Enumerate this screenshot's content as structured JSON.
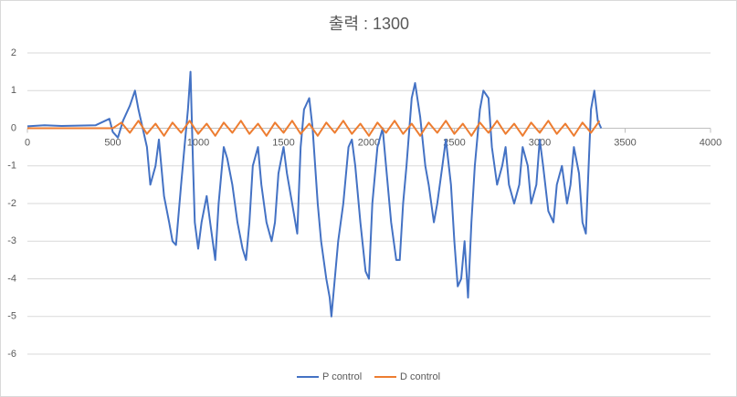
{
  "chart_data": {
    "type": "line",
    "title": "출력 : 1300",
    "xlim": [
      0,
      4000
    ],
    "xticks": [
      0,
      500,
      1000,
      1500,
      2000,
      2500,
      3000,
      3500,
      4000
    ],
    "ylim": [
      -6,
      2
    ],
    "yticks": [
      -6,
      -5,
      -4,
      -3,
      -2,
      -1,
      0,
      1,
      2
    ],
    "grid": true,
    "legend": "bottom",
    "series": [
      {
        "name": "P control",
        "color": "#4472c4",
        "x": [
          0,
          100,
          200,
          300,
          400,
          480,
          500,
          530,
          560,
          600,
          630,
          650,
          700,
          720,
          750,
          770,
          800,
          830,
          850,
          870,
          900,
          920,
          940,
          955,
          970,
          980,
          1000,
          1020,
          1050,
          1070,
          1100,
          1120,
          1150,
          1170,
          1200,
          1230,
          1260,
          1280,
          1300,
          1320,
          1350,
          1370,
          1400,
          1430,
          1450,
          1470,
          1500,
          1520,
          1550,
          1580,
          1600,
          1620,
          1650,
          1670,
          1700,
          1720,
          1750,
          1770,
          1780,
          1800,
          1820,
          1850,
          1880,
          1900,
          1920,
          1950,
          1980,
          2000,
          2020,
          2050,
          2080,
          2100,
          2130,
          2160,
          2180,
          2200,
          2220,
          2250,
          2270,
          2300,
          2330,
          2350,
          2380,
          2400,
          2430,
          2450,
          2480,
          2500,
          2520,
          2540,
          2560,
          2580,
          2600,
          2620,
          2650,
          2670,
          2700,
          2720,
          2750,
          2780,
          2800,
          2820,
          2850,
          2880,
          2900,
          2930,
          2950,
          2980,
          3000,
          3020,
          3050,
          3080,
          3100,
          3130,
          3160,
          3180,
          3200,
          3230,
          3250,
          3270,
          3300,
          3320,
          3340,
          3360
        ],
        "values": [
          0.05,
          0.08,
          0.06,
          0.07,
          0.08,
          0.25,
          -0.1,
          -0.25,
          0.2,
          0.6,
          1.0,
          0.5,
          -0.5,
          -1.5,
          -1,
          -0.3,
          -1.8,
          -2.5,
          -3,
          -3.1,
          -1.5,
          -0.5,
          0.5,
          1.5,
          -1,
          -2.5,
          -3.2,
          -2.5,
          -1.8,
          -2.5,
          -3.5,
          -2,
          -0.5,
          -0.8,
          -1.5,
          -2.5,
          -3.2,
          -3.5,
          -2.5,
          -1,
          -0.5,
          -1.5,
          -2.5,
          -3,
          -2.5,
          -1.2,
          -0.5,
          -1.2,
          -2,
          -2.8,
          -0.5,
          0.5,
          0.8,
          0,
          -2,
          -3,
          -4,
          -4.5,
          -5,
          -4,
          -3,
          -2,
          -0.5,
          -0.3,
          -1,
          -2.5,
          -3.8,
          -4,
          -2,
          -0.5,
          0,
          -1,
          -2.5,
          -3.5,
          -3.5,
          -2,
          -1,
          0.8,
          1.2,
          0.3,
          -1,
          -1.5,
          -2.5,
          -2,
          -1,
          -0.3,
          -1.5,
          -3,
          -4.2,
          -4,
          -3,
          -4.5,
          -2.5,
          -1,
          0.5,
          1,
          0.8,
          -0.5,
          -1.5,
          -1,
          -0.5,
          -1.5,
          -2,
          -1.5,
          -0.5,
          -1,
          -2,
          -1.5,
          -0.3,
          -1,
          -2.2,
          -2.5,
          -1.5,
          -1,
          -2,
          -1.5,
          -0.5,
          -1.2,
          -2.5,
          -2.8,
          0.5,
          1,
          0.2,
          0
        ]
      },
      {
        "name": "D control",
        "color": "#ed7d31",
        "x": [
          0,
          250,
          500,
          550,
          600,
          650,
          700,
          750,
          800,
          850,
          900,
          950,
          1000,
          1050,
          1100,
          1150,
          1200,
          1250,
          1300,
          1350,
          1400,
          1450,
          1500,
          1550,
          1600,
          1650,
          1700,
          1750,
          1800,
          1850,
          1900,
          1950,
          2000,
          2050,
          2100,
          2150,
          2200,
          2250,
          2300,
          2350,
          2400,
          2450,
          2500,
          2550,
          2600,
          2650,
          2700,
          2750,
          2800,
          2850,
          2900,
          2950,
          3000,
          3050,
          3100,
          3150,
          3200,
          3250,
          3300,
          3350
        ],
        "values": [
          0,
          0,
          0,
          0.15,
          -0.12,
          0.2,
          -0.15,
          0.12,
          -0.2,
          0.15,
          -0.12,
          0.2,
          -0.15,
          0.12,
          -0.2,
          0.15,
          -0.12,
          0.2,
          -0.15,
          0.12,
          -0.2,
          0.15,
          -0.12,
          0.2,
          -0.15,
          0.12,
          -0.2,
          0.15,
          -0.12,
          0.2,
          -0.15,
          0.12,
          -0.2,
          0.15,
          -0.12,
          0.2,
          -0.15,
          0.12,
          -0.2,
          0.15,
          -0.12,
          0.2,
          -0.15,
          0.12,
          -0.2,
          0.15,
          -0.12,
          0.2,
          -0.15,
          0.12,
          -0.2,
          0.15,
          -0.12,
          0.2,
          -0.15,
          0.12,
          -0.2,
          0.15,
          -0.12,
          0.2
        ]
      }
    ]
  }
}
